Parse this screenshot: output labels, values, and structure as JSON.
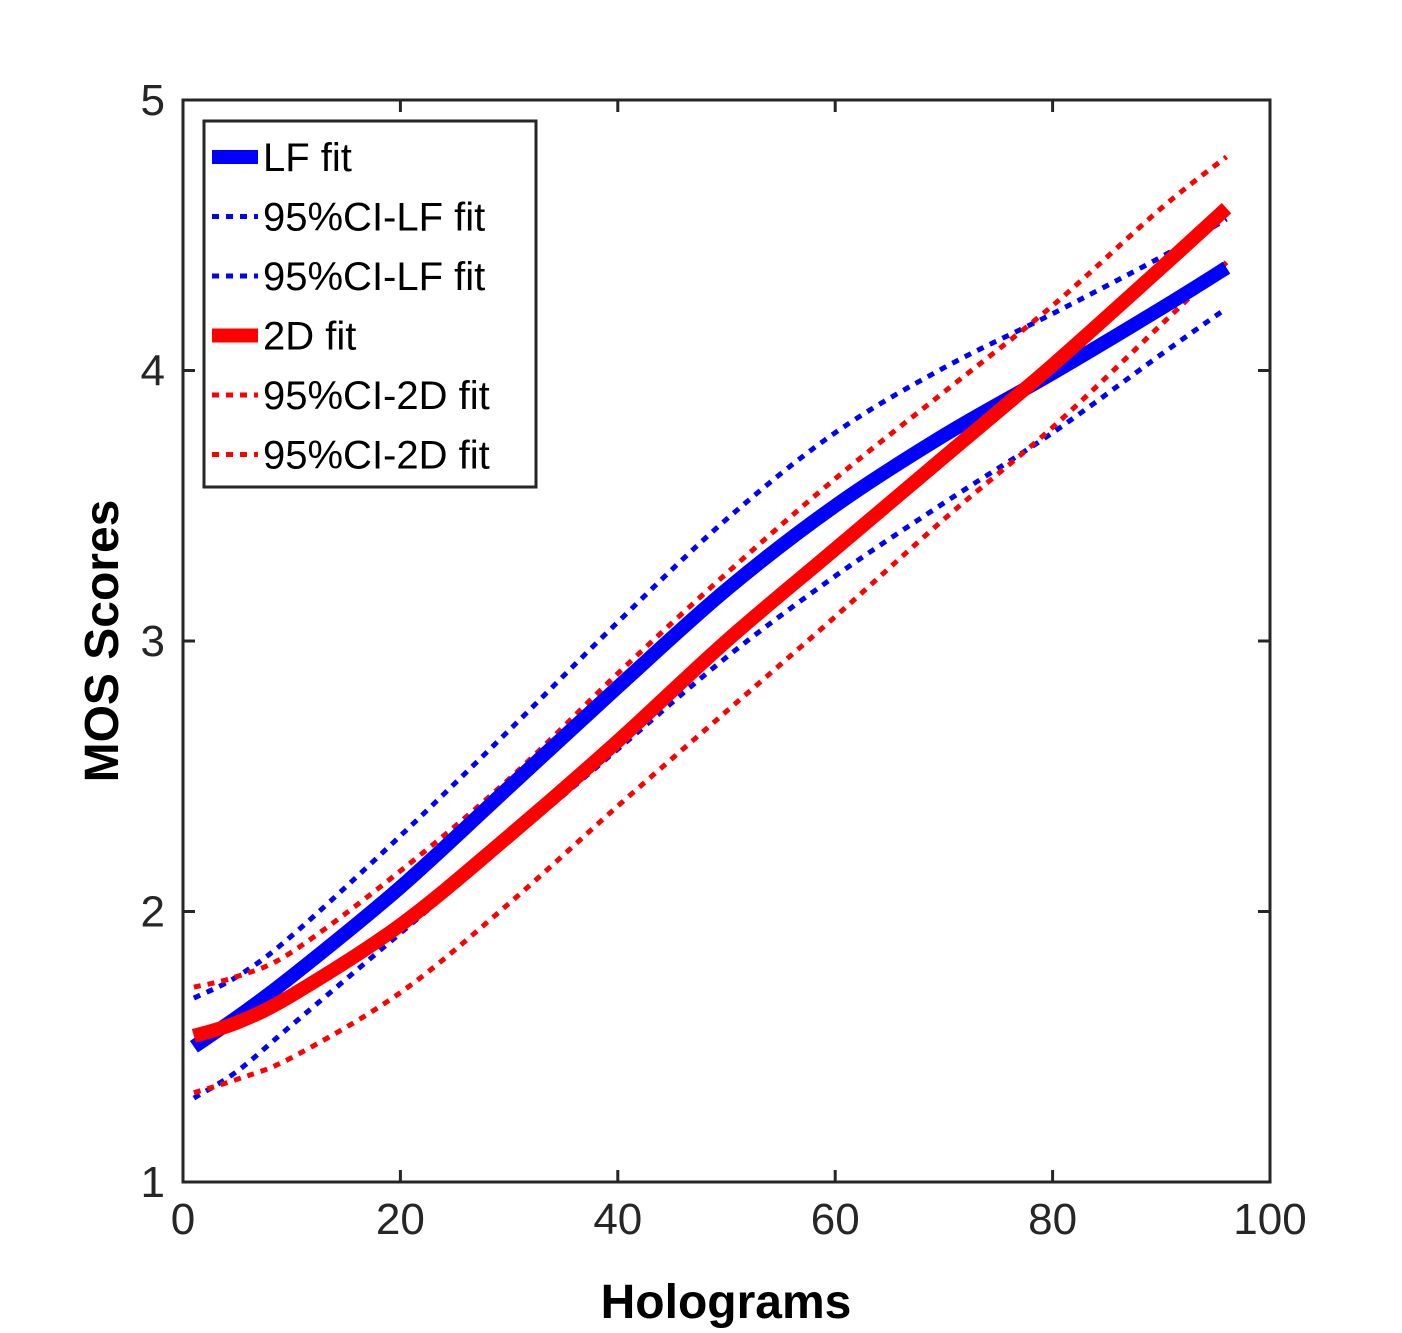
{
  "chart_data": {
    "type": "line",
    "title": "",
    "xlabel": "Holograms",
    "ylabel": "MOS Scores",
    "xlim": [
      0,
      100
    ],
    "ylim": [
      1,
      5
    ],
    "xticks": [
      "0",
      "20",
      "40",
      "60",
      "80",
      "100"
    ],
    "yticks": [
      "1",
      "2",
      "3",
      "4",
      "5"
    ],
    "grid": false,
    "legend_position": "top-left",
    "x": [
      1,
      5,
      10,
      20,
      30,
      40,
      50,
      60,
      70,
      80,
      90,
      96
    ],
    "series": [
      {
        "name": "LF fit",
        "style": "solid",
        "color": "#0000ff",
        "values": [
          1.5,
          1.61,
          1.76,
          2.09,
          2.46,
          2.83,
          3.19,
          3.5,
          3.76,
          3.99,
          4.23,
          4.38
        ]
      },
      {
        "name": "95%CI-LF fit",
        "style": "dotted",
        "color": "#0000ff",
        "values": [
          1.68,
          1.76,
          1.91,
          2.28,
          2.67,
          3.07,
          3.45,
          3.77,
          4.01,
          4.21,
          4.42,
          4.56
        ]
      },
      {
        "name": "95%CI-LF fit",
        "style": "dotted",
        "color": "#0000ff",
        "values": [
          1.31,
          1.41,
          1.58,
          1.92,
          2.26,
          2.6,
          2.94,
          3.24,
          3.51,
          3.77,
          4.06,
          4.23
        ]
      },
      {
        "name": "2D fit",
        "style": "solid",
        "color": "#ff0000",
        "values": [
          1.54,
          1.59,
          1.69,
          1.95,
          2.28,
          2.63,
          3.0,
          3.34,
          3.68,
          4.02,
          4.38,
          4.6
        ]
      },
      {
        "name": "95%CI-2D fit",
        "style": "dotted",
        "color": "#ff0000",
        "values": [
          1.72,
          1.76,
          1.85,
          2.15,
          2.49,
          2.88,
          3.25,
          3.6,
          3.92,
          4.24,
          4.6,
          4.79
        ]
      },
      {
        "name": "95%CI-2D fit",
        "style": "dotted",
        "color": "#ff0000",
        "values": [
          1.33,
          1.38,
          1.46,
          1.7,
          2.03,
          2.39,
          2.74,
          3.09,
          3.45,
          3.79,
          4.17,
          4.4
        ]
      }
    ]
  }
}
